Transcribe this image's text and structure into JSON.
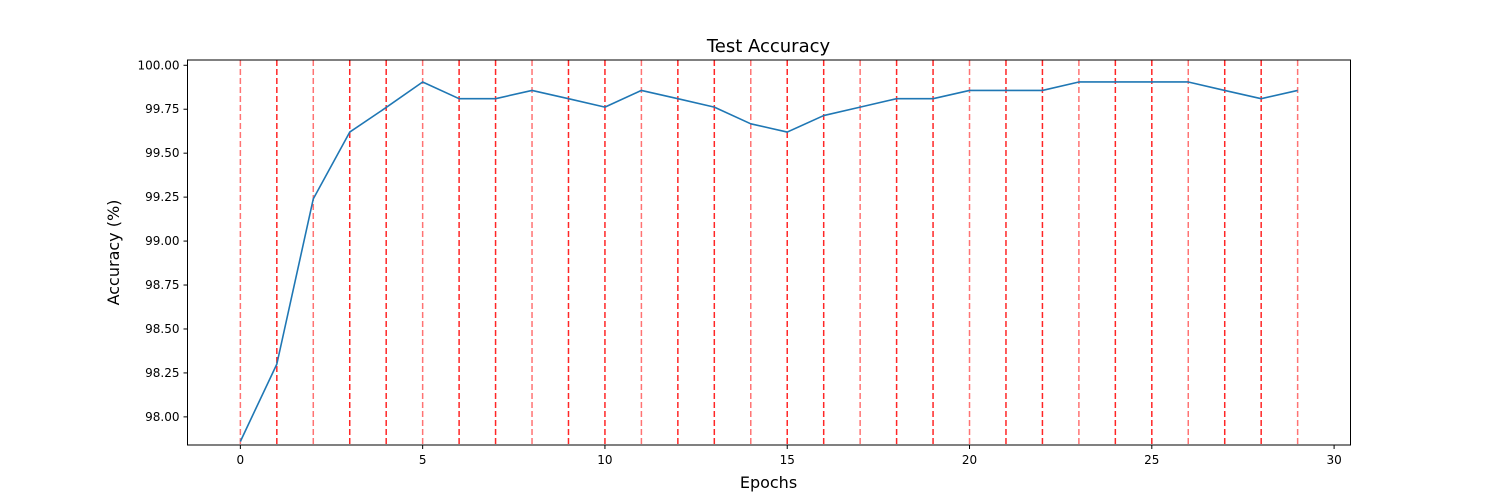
{
  "chart_data": {
    "type": "line",
    "title": "Test Accuracy",
    "xlabel": "Epochs",
    "ylabel": "Accuracy (%)",
    "xlim": [
      -1.45,
      30.45
    ],
    "ylim": [
      97.84,
      100.03
    ],
    "xticks": [
      0,
      5,
      10,
      15,
      20,
      25,
      30
    ],
    "yticks": [
      98.0,
      98.25,
      98.5,
      98.75,
      99.0,
      99.25,
      99.5,
      99.75,
      100.0
    ],
    "ytick_labels": [
      "98.00",
      "98.25",
      "98.50",
      "98.75",
      "99.00",
      "99.25",
      "99.50",
      "99.75",
      "100.00"
    ],
    "grid": false,
    "line_color": "#1f77b4",
    "series": [
      {
        "x": [
          0,
          1,
          2,
          3,
          4,
          5,
          6,
          7,
          8,
          9,
          10,
          11,
          12,
          13,
          14,
          15,
          16,
          17,
          18,
          19,
          20,
          21,
          22,
          23,
          24,
          25,
          26,
          27,
          28,
          29
        ],
        "values": [
          97.86,
          98.3,
          99.24,
          99.62,
          99.76,
          99.905,
          99.81,
          99.81,
          99.857,
          99.81,
          99.762,
          99.857,
          99.81,
          99.762,
          99.667,
          99.62,
          99.714,
          99.762,
          99.81,
          99.81,
          99.857,
          99.857,
          99.857,
          99.905,
          99.905,
          99.905,
          99.905,
          99.857,
          99.81,
          99.857
        ]
      }
    ],
    "vlines": {
      "color": "#ff0000",
      "style": "dashed",
      "positions": [
        0,
        1,
        2,
        3,
        4,
        5,
        6,
        7,
        8,
        9,
        10,
        11,
        12,
        13,
        14,
        15,
        16,
        17,
        18,
        19,
        20,
        21,
        22,
        23,
        24,
        25,
        26,
        27,
        28,
        29
      ],
      "opacity": [
        0.55,
        0.85,
        0.55,
        0.85,
        0.85,
        0.55,
        0.85,
        0.85,
        0.55,
        0.85,
        0.85,
        0.55,
        0.85,
        0.85,
        0.55,
        0.85,
        0.85,
        0.55,
        0.85,
        0.85,
        0.55,
        0.85,
        0.85,
        0.55,
        0.85,
        0.85,
        0.55,
        0.85,
        0.85,
        0.55
      ]
    }
  }
}
